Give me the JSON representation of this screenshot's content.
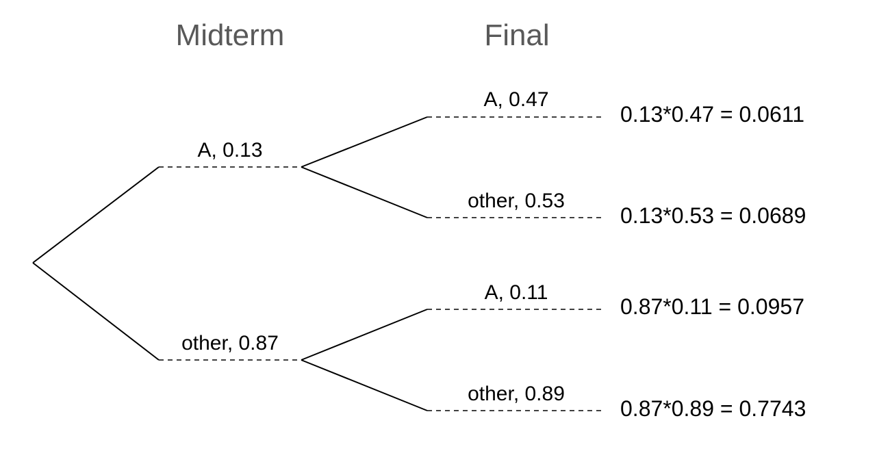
{
  "headers": {
    "midterm": "Midterm",
    "final": "Final"
  },
  "midterm_branches": [
    {
      "label": "A,  0.13",
      "final_branches": [
        {
          "label": "A,  0.47",
          "result": "0.13*0.47 = 0.0611"
        },
        {
          "label": "other,  0.53",
          "result": "0.13*0.53 = 0.0689"
        }
      ]
    },
    {
      "label": "other,  0.87",
      "final_branches": [
        {
          "label": "A,  0.11",
          "result": "0.87*0.11 = 0.0957"
        },
        {
          "label": "other,  0.89",
          "result": "0.87*0.89 = 0.7743"
        }
      ]
    }
  ]
}
